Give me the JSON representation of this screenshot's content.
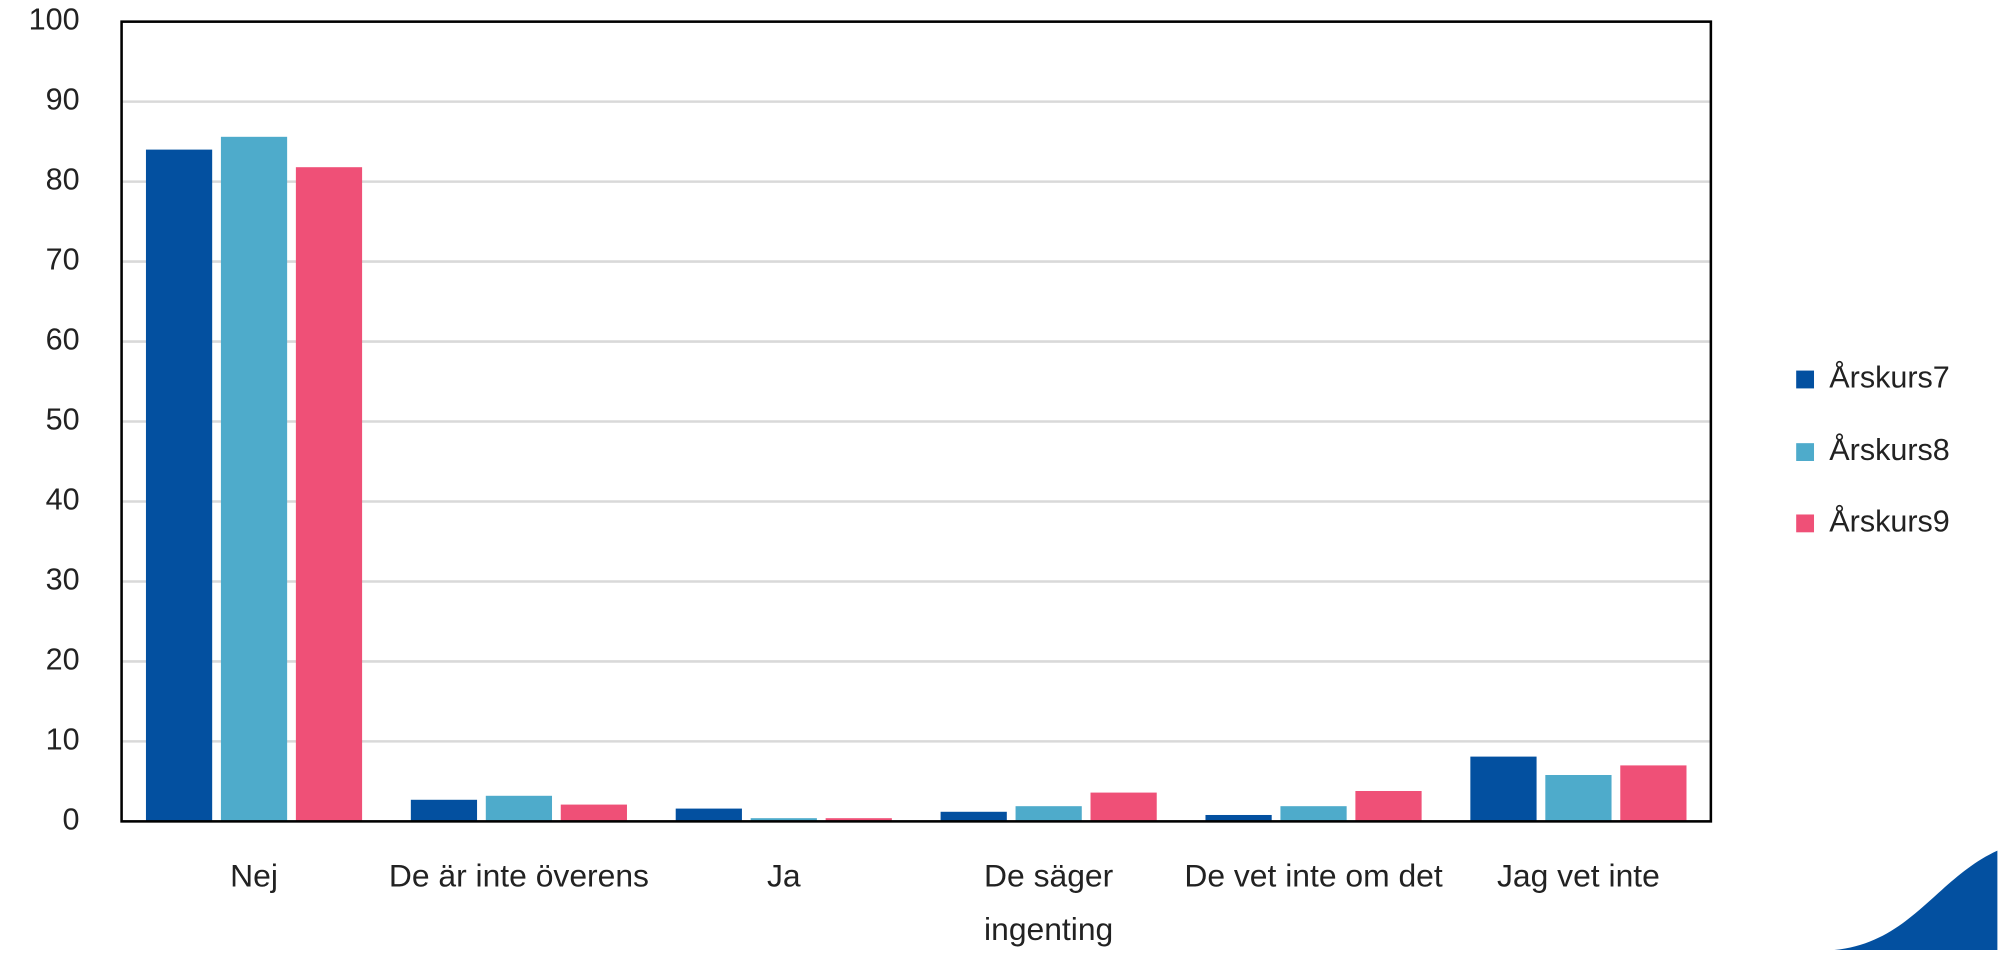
{
  "chart_data": {
    "type": "bar",
    "categories": [
      "Nej",
      "De är inte överens",
      "Ja",
      "De säger ingenting",
      "De vet inte om det",
      "Jag vet inte"
    ],
    "series": [
      {
        "name": "Årskurs7",
        "color": "#0350a0",
        "values": [
          84.0,
          2.7,
          1.6,
          1.2,
          0.8,
          8.1
        ]
      },
      {
        "name": "Årskurs8",
        "color": "#4eabcb",
        "values": [
          85.6,
          3.2,
          0.4,
          1.9,
          1.9,
          5.8
        ]
      },
      {
        "name": "Årskurs9",
        "color": "#ef5077",
        "values": [
          81.8,
          2.1,
          0.4,
          3.6,
          3.8,
          7.0
        ]
      }
    ],
    "ylim": [
      0,
      100
    ],
    "yticks": [
      0,
      10,
      20,
      30,
      40,
      50,
      60,
      70,
      80,
      90,
      100
    ],
    "grid": true,
    "legend": "right"
  }
}
